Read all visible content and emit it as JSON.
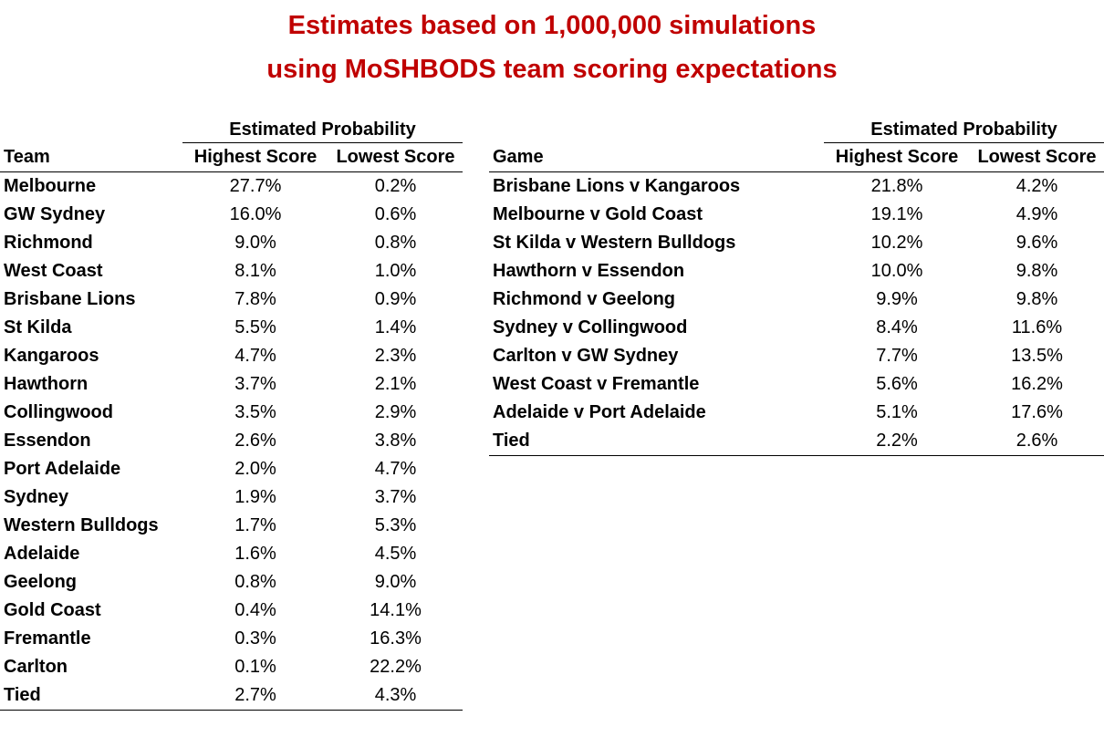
{
  "title": {
    "line1": "Estimates based on 1,000,000 simulations",
    "line2": "using MoSHBODS team scoring expectations"
  },
  "teams_table": {
    "group_header": "Estimated Probability",
    "columns": [
      "Team",
      "Highest Score",
      "Lowest Score"
    ],
    "rows": [
      {
        "team": "Melbourne",
        "highest": "27.7%",
        "lowest": "0.2%"
      },
      {
        "team": "GW Sydney",
        "highest": "16.0%",
        "lowest": "0.6%"
      },
      {
        "team": "Richmond",
        "highest": "9.0%",
        "lowest": "0.8%"
      },
      {
        "team": "West Coast",
        "highest": "8.1%",
        "lowest": "1.0%"
      },
      {
        "team": "Brisbane Lions",
        "highest": "7.8%",
        "lowest": "0.9%"
      },
      {
        "team": "St Kilda",
        "highest": "5.5%",
        "lowest": "1.4%"
      },
      {
        "team": "Kangaroos",
        "highest": "4.7%",
        "lowest": "2.3%"
      },
      {
        "team": "Hawthorn",
        "highest": "3.7%",
        "lowest": "2.1%"
      },
      {
        "team": "Collingwood",
        "highest": "3.5%",
        "lowest": "2.9%"
      },
      {
        "team": "Essendon",
        "highest": "2.6%",
        "lowest": "3.8%"
      },
      {
        "team": "Port Adelaide",
        "highest": "2.0%",
        "lowest": "4.7%"
      },
      {
        "team": "Sydney",
        "highest": "1.9%",
        "lowest": "3.7%"
      },
      {
        "team": "Western Bulldogs",
        "highest": "1.7%",
        "lowest": "5.3%"
      },
      {
        "team": "Adelaide",
        "highest": "1.6%",
        "lowest": "4.5%"
      },
      {
        "team": "Geelong",
        "highest": "0.8%",
        "lowest": "9.0%"
      },
      {
        "team": "Gold Coast",
        "highest": "0.4%",
        "lowest": "14.1%"
      },
      {
        "team": "Fremantle",
        "highest": "0.3%",
        "lowest": "16.3%"
      },
      {
        "team": "Carlton",
        "highest": "0.1%",
        "lowest": "22.2%"
      },
      {
        "team": "Tied",
        "highest": "2.7%",
        "lowest": "4.3%"
      }
    ]
  },
  "games_table": {
    "group_header": "Estimated Probability",
    "columns": [
      "Game",
      "Highest Score",
      "Lowest Score"
    ],
    "rows": [
      {
        "game": "Brisbane Lions v Kangaroos",
        "highest": "21.8%",
        "lowest": "4.2%"
      },
      {
        "game": "Melbourne v Gold Coast",
        "highest": "19.1%",
        "lowest": "4.9%"
      },
      {
        "game": "St Kilda v Western Bulldogs",
        "highest": "10.2%",
        "lowest": "9.6%"
      },
      {
        "game": "Hawthorn v Essendon",
        "highest": "10.0%",
        "lowest": "9.8%"
      },
      {
        "game": "Richmond v Geelong",
        "highest": "9.9%",
        "lowest": "9.8%"
      },
      {
        "game": "Sydney v Collingwood",
        "highest": "8.4%",
        "lowest": "11.6%"
      },
      {
        "game": "Carlton v GW Sydney",
        "highest": "7.7%",
        "lowest": "13.5%"
      },
      {
        "game": "West Coast v Fremantle",
        "highest": "5.6%",
        "lowest": "16.2%"
      },
      {
        "game": "Adelaide v Port Adelaide",
        "highest": "5.1%",
        "lowest": "17.6%"
      },
      {
        "game": "Tied",
        "highest": "2.2%",
        "lowest": "2.6%"
      }
    ]
  },
  "colors": {
    "title": "#c00000",
    "text": "#000000",
    "rule": "#000000"
  }
}
